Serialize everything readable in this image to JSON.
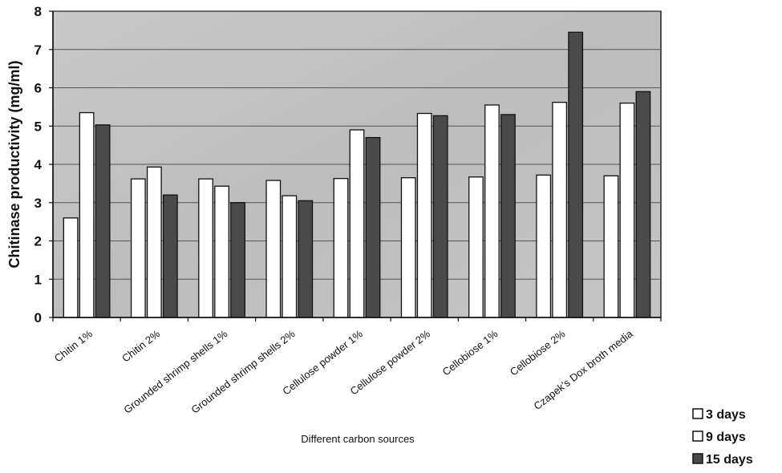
{
  "chart_data": {
    "type": "bar",
    "ylabel": "Chitinase productivity (mg/ml)",
    "xlabel": "Different carbon sources",
    "ylim": [
      0,
      8
    ],
    "yticks": [
      0,
      1,
      2,
      3,
      4,
      5,
      6,
      7,
      8
    ],
    "grid": true,
    "legend_position": "bottom-right",
    "categories": [
      "Chitin 1%",
      "Chitin 2%",
      "Grounded shrimp shells 1%",
      "Grounded shrimp shells 2%",
      "Cellulose powder 1%",
      "Cellulose powder 2%",
      "Cellobiose 1%",
      "Cellobiose 2%",
      "Czapek’s Dox broth media"
    ],
    "series": [
      {
        "name": "3 days",
        "color": "#ffffff",
        "values": [
          2.6,
          3.62,
          3.62,
          3.58,
          3.63,
          3.65,
          3.67,
          3.72,
          3.7
        ]
      },
      {
        "name": "9 days",
        "color": "#ffffff",
        "values": [
          5.35,
          3.93,
          3.43,
          3.18,
          4.9,
          5.33,
          5.55,
          5.62,
          5.6
        ]
      },
      {
        "name": "15 days",
        "color": "#4a4a4a",
        "values": [
          5.03,
          3.2,
          3.0,
          3.05,
          4.7,
          5.27,
          5.3,
          7.45,
          5.9
        ]
      }
    ]
  }
}
